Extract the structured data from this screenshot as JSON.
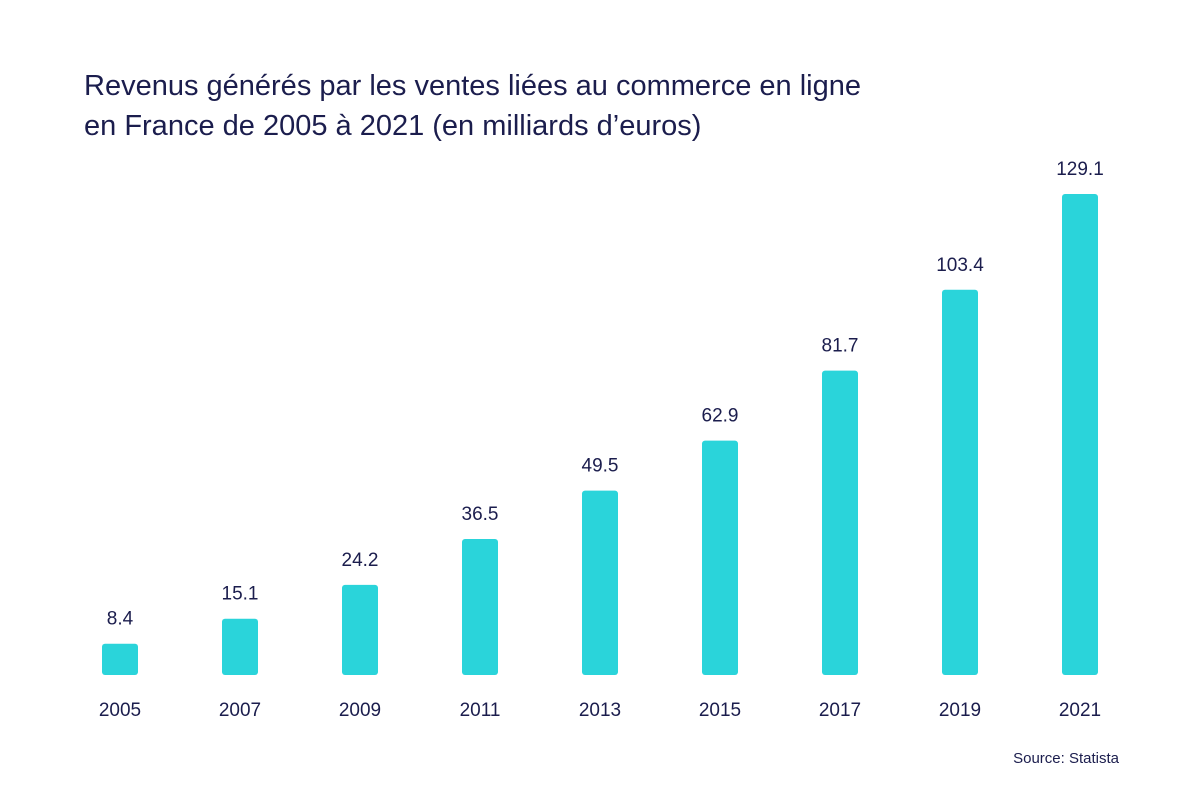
{
  "chart_data": {
    "type": "bar",
    "title_line1": "Revenus générés par les ventes liées au commerce en ligne",
    "title_line2": "en France de 2005 à 2021 (en milliards d’euros)",
    "categories": [
      "2005",
      "2007",
      "2009",
      "2011",
      "2013",
      "2015",
      "2017",
      "2019",
      "2021"
    ],
    "values": [
      8.4,
      15.1,
      24.2,
      36.5,
      49.5,
      62.9,
      81.7,
      103.4,
      129.1
    ],
    "value_labels": [
      "8.4",
      "15.1",
      "24.2",
      "36.5",
      "49.5",
      "62.9",
      "81.7",
      "103.4",
      "129.1"
    ],
    "ylim": [
      0,
      129.1
    ],
    "grid": false,
    "legend": "none",
    "bar_color": "#2ad4da",
    "text_color": "#1b1d4d"
  },
  "footer": {
    "source": "Source: Statista"
  }
}
